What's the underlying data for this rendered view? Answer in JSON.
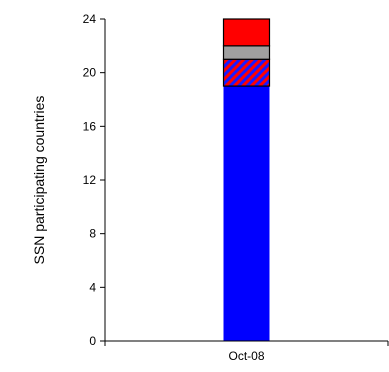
{
  "chart_data": {
    "type": "bar",
    "stacked": true,
    "categories": [
      "Oct-08"
    ],
    "ylabel": "SSN participating countries",
    "xlabel": "",
    "ylim": [
      0,
      24
    ],
    "yticks": [
      0,
      4,
      8,
      12,
      16,
      20,
      24
    ],
    "grid": false,
    "legend": "none",
    "series": [
      {
        "values": [
          19
        ],
        "color": "#0000ff",
        "pattern": "solid"
      },
      {
        "values": [
          2
        ],
        "color": "#ff0000",
        "pattern": "red-blue-diagonal-hatch"
      },
      {
        "values": [
          1
        ],
        "color": "#a0a0a0",
        "pattern": "solid"
      },
      {
        "values": [
          2
        ],
        "color": "#ff0000",
        "pattern": "solid"
      }
    ]
  }
}
